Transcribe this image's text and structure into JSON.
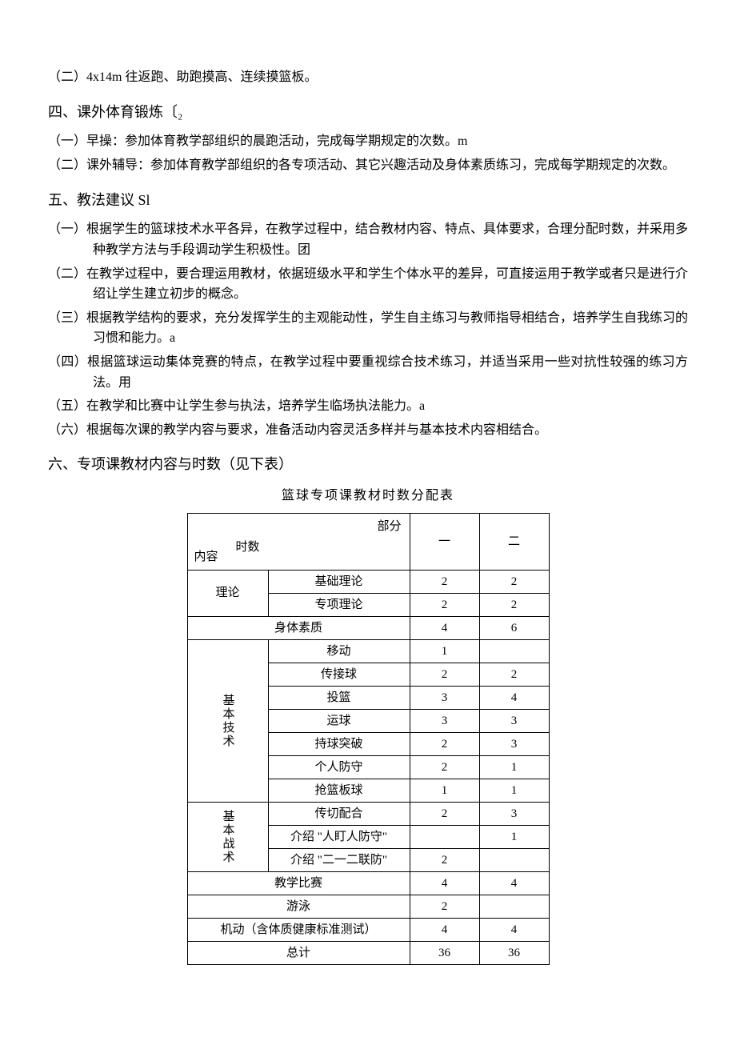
{
  "section2_item2": "（二）4x14m 往返跑、助跑摸高、连续摸篮板。",
  "h4": "四、课外体育锻炼〔₂",
  "s4_1": "（一）早操：参加体育教学部组织的晨跑活动，完成每学期规定的次数。m",
  "s4_2": "（二）课外辅导：参加体育教学部组织的各专项活动、其它兴趣活动及身体素质练习，完成每学期规定的次数。",
  "h5": "五、教法建议 Sl",
  "s5_1": "（一）根据学生的篮球技术水平各异，在教学过程中，结合教材内容、特点、具体要求，合理分配时数，并采用多种教学方法与手段调动学生积极性。团",
  "s5_2": "（二）在教学过程中，要合理运用教材，依据班级水平和学生个体水平的差异，可直接运用于教学或者只是进行介绍让学生建立初步的概念。",
  "s5_3": "（三）根据教学结构的要求，充分发挥学生的主观能动性，学生自主练习与教师指导相结合，培养学生自我练习的习惯和能力。a",
  "s5_4": "（四）根据篮球运动集体竞赛的特点，在教学过程中要重视综合技术练习，并适当采用一些对抗性较强的练习方法。用",
  "s5_5": "（五）在教学和比赛中让学生参与执法，培养学生临场执法能力。a",
  "s5_6": "（六）根据每次课的教学内容与要求，准备活动内容灵活多样并与基本技术内容相结合。",
  "h6": "六、专项课教材内容与时数（见下表）",
  "table_title": "篮球专项课教材时数分配表",
  "hdr": {
    "part": "部分",
    "hours": "时数",
    "content": "内容",
    "c1": "一",
    "c2": "二"
  },
  "groups": {
    "theory": "理论",
    "tech": "基本技术",
    "tactic": "基本战术"
  },
  "rows": {
    "r1": {
      "label": "基础理论",
      "c1": "2",
      "c2": "2"
    },
    "r2": {
      "label": "专项理论",
      "c1": "2",
      "c2": "2"
    },
    "r3": {
      "label": "身体素质",
      "c1": "4",
      "c2": "6"
    },
    "r4": {
      "label": "移动",
      "c1": "1",
      "c2": ""
    },
    "r5": {
      "label": "传接球",
      "c1": "2",
      "c2": "2"
    },
    "r6": {
      "label": "投篮",
      "c1": "3",
      "c2": "4"
    },
    "r7": {
      "label": "运球",
      "c1": "3",
      "c2": "3"
    },
    "r8": {
      "label": "持球突破",
      "c1": "2",
      "c2": "3"
    },
    "r9": {
      "label": "个人防守",
      "c1": "2",
      "c2": "1"
    },
    "r10": {
      "label": "抢篮板球",
      "c1": "1",
      "c2": "1"
    },
    "r11": {
      "label": "传切配合",
      "c1": "2",
      "c2": "3"
    },
    "r12": {
      "label": "介绍 \"人盯人防守\"",
      "c1": "",
      "c2": "1"
    },
    "r13": {
      "label": "介绍 \"二一二联防\"",
      "c1": "2",
      "c2": ""
    },
    "r14": {
      "label": "教学比赛",
      "c1": "4",
      "c2": "4"
    },
    "r15": {
      "label": "游泳",
      "c1": "2",
      "c2": ""
    },
    "r16": {
      "label": "机动（含体质健康标准测试）",
      "c1": "4",
      "c2": "4"
    },
    "r17": {
      "label": "总计",
      "c1": "36",
      "c2": "36"
    }
  }
}
